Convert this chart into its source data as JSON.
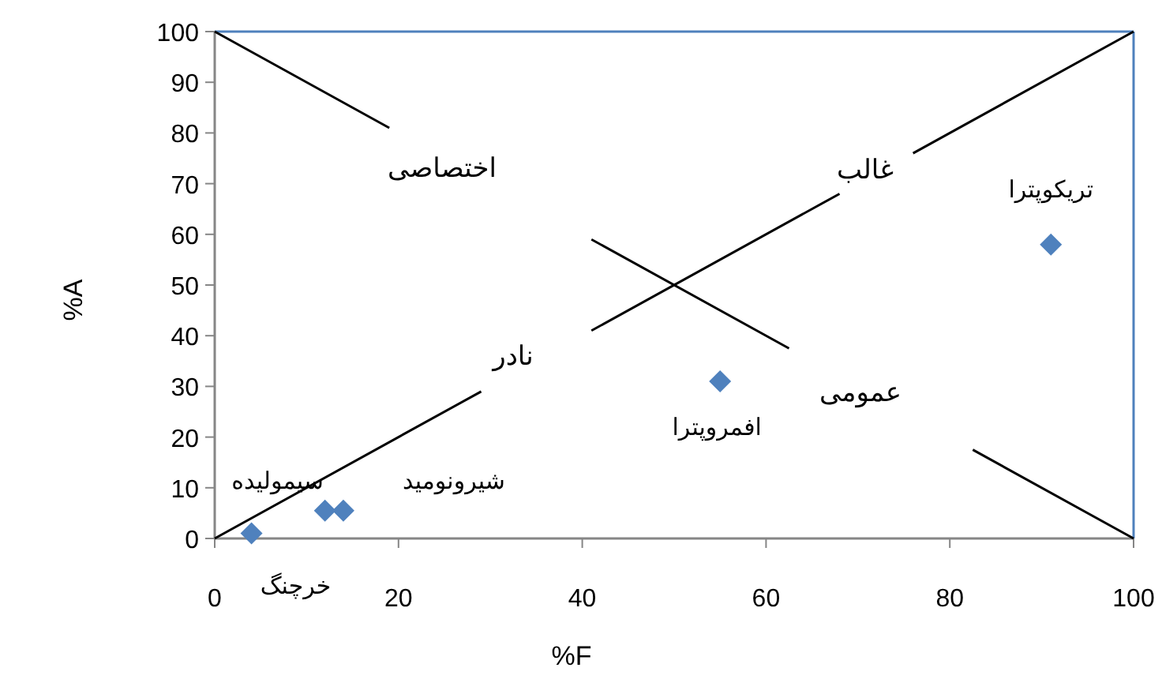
{
  "chart_data": {
    "type": "scatter",
    "xlabel": "%F",
    "ylabel": "%A",
    "xlim": [
      0,
      100
    ],
    "ylim": [
      0,
      100
    ],
    "xticks": [
      0,
      20,
      40,
      60,
      80,
      100
    ],
    "yticks": [
      0,
      10,
      20,
      30,
      40,
      50,
      60,
      70,
      80,
      90,
      100
    ],
    "grid": false,
    "series": [
      {
        "color": "#4f81bd",
        "marker": "diamond",
        "x": [
          4,
          12,
          14,
          55,
          91
        ],
        "values": [
          1,
          5.5,
          5.5,
          31,
          58
        ]
      },
      {
        "type": "line",
        "color": "#000000",
        "line_style": "solid",
        "x": [
          0,
          19,
          null,
          41,
          62.5,
          null,
          82.5,
          100
        ],
        "values": [
          100,
          81,
          null,
          59,
          37.5,
          null,
          17.5,
          0
        ]
      },
      {
        "type": "line",
        "color": "#000000",
        "line_style": "solid",
        "x": [
          0,
          29,
          null,
          41,
          68,
          null,
          76,
          100
        ],
        "values": [
          0,
          29,
          null,
          41,
          68,
          null,
          76,
          100
        ]
      }
    ],
    "annotations": [
      {
        "text": "خرچنگ",
        "x": 4,
        "y": 1
      },
      {
        "text": "سیمولیده",
        "x": 12,
        "y": 5.5
      },
      {
        "text": "شیرونومید",
        "x": 14,
        "y": 5.5
      },
      {
        "text": "افمروپترا",
        "x": 55,
        "y": 31
      },
      {
        "text": "تریکوپترا",
        "x": 91,
        "y": 58
      },
      "اختصاصی",
      "غالب",
      "نادر",
      "عمومی"
    ]
  }
}
